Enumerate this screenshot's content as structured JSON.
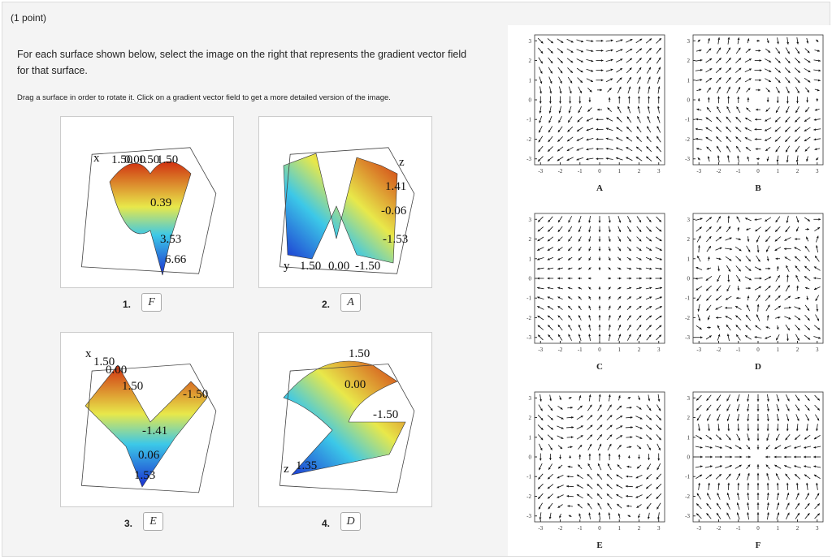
{
  "header": {
    "points": "(1 point)"
  },
  "instructions": [
    "For each surface shown below, select the image on the right that represents the gradient vector field for that surface.",
    "Drag a surface in order to rotate it. Click on a gradient vector field to get a more detailed version of the image."
  ],
  "questions": [
    {
      "number": "1.",
      "answer": "F",
      "surface_labels": [
        "x",
        "1.50",
        "0.00",
        "1.50",
        "1.50",
        "0.39",
        "3.53",
        "6.66"
      ]
    },
    {
      "number": "2.",
      "answer": "A",
      "surface_labels": [
        "z",
        "1.41",
        "-0.06",
        "-1.53",
        "y",
        "1.50",
        "0.00",
        "-1.50"
      ]
    },
    {
      "number": "3.",
      "answer": "E",
      "surface_labels": [
        "x",
        "1.50",
        "0.00",
        "1.50",
        "-1.50",
        "-1.41",
        "0.06",
        "1.53"
      ]
    },
    {
      "number": "4.",
      "answer": "D",
      "surface_labels": [
        "1.50",
        "0.00",
        "-1.50",
        "z",
        "1.35"
      ]
    }
  ],
  "fields": {
    "labels": [
      "A",
      "B",
      "C",
      "D",
      "E",
      "F"
    ],
    "ticks": [
      -3,
      -2,
      -1,
      0,
      1,
      2,
      3
    ]
  }
}
